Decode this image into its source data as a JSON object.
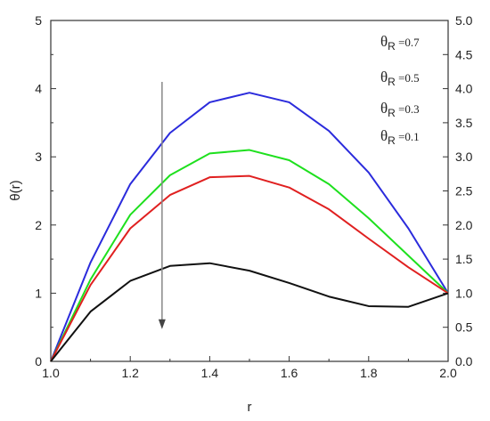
{
  "chart_data": {
    "type": "line",
    "title": "",
    "xlabel": "r",
    "ylabel": "θ(r)",
    "xlim": [
      1.0,
      2.0
    ],
    "ylim": [
      0,
      5
    ],
    "y2lim": [
      0,
      5
    ],
    "x_ticks": [
      "1.0",
      "1.2",
      "1.4",
      "1.6",
      "1.8",
      "2.0"
    ],
    "y_ticks_left": [
      "0",
      "1",
      "2",
      "3",
      "4",
      "5"
    ],
    "y_ticks_right": [
      "0.0",
      "0.5",
      "1.0",
      "1.5",
      "2.0",
      "2.5",
      "3.0",
      "3.5",
      "4.0",
      "4.5",
      "5.0"
    ],
    "grid": false,
    "legend_position": "top-right",
    "arrow": {
      "x": 1.28,
      "y_start": 4.1,
      "y_end": 0.5,
      "color": "#888888"
    },
    "legend": [
      {
        "symbol": "θ",
        "sub": "R",
        "value": " =0.7"
      },
      {
        "symbol": "θ",
        "sub": "R",
        "value": " =0.5"
      },
      {
        "symbol": "θ",
        "sub": "R",
        "value": " =0.3"
      },
      {
        "symbol": "θ",
        "sub": "R",
        "value": " =0.1"
      }
    ],
    "x": [
      1.0,
      1.1,
      1.2,
      1.3,
      1.4,
      1.5,
      1.6,
      1.7,
      1.8,
      1.9,
      2.0
    ],
    "series": [
      {
        "color": "#2b2bdc",
        "values": [
          0,
          1.45,
          2.6,
          3.35,
          3.8,
          3.94,
          3.8,
          3.38,
          2.77,
          1.95,
          1.0
        ]
      },
      {
        "color": "#1ee01e",
        "values": [
          0,
          1.2,
          2.15,
          2.73,
          3.05,
          3.1,
          2.95,
          2.6,
          2.1,
          1.55,
          1.0
        ]
      },
      {
        "color": "#e02020",
        "values": [
          0,
          1.12,
          1.95,
          2.44,
          2.7,
          2.72,
          2.55,
          2.23,
          1.8,
          1.38,
          1.0
        ]
      },
      {
        "color": "#111111",
        "values": [
          0,
          0.73,
          1.18,
          1.4,
          1.44,
          1.33,
          1.15,
          0.95,
          0.81,
          0.8,
          1.0
        ]
      }
    ]
  }
}
